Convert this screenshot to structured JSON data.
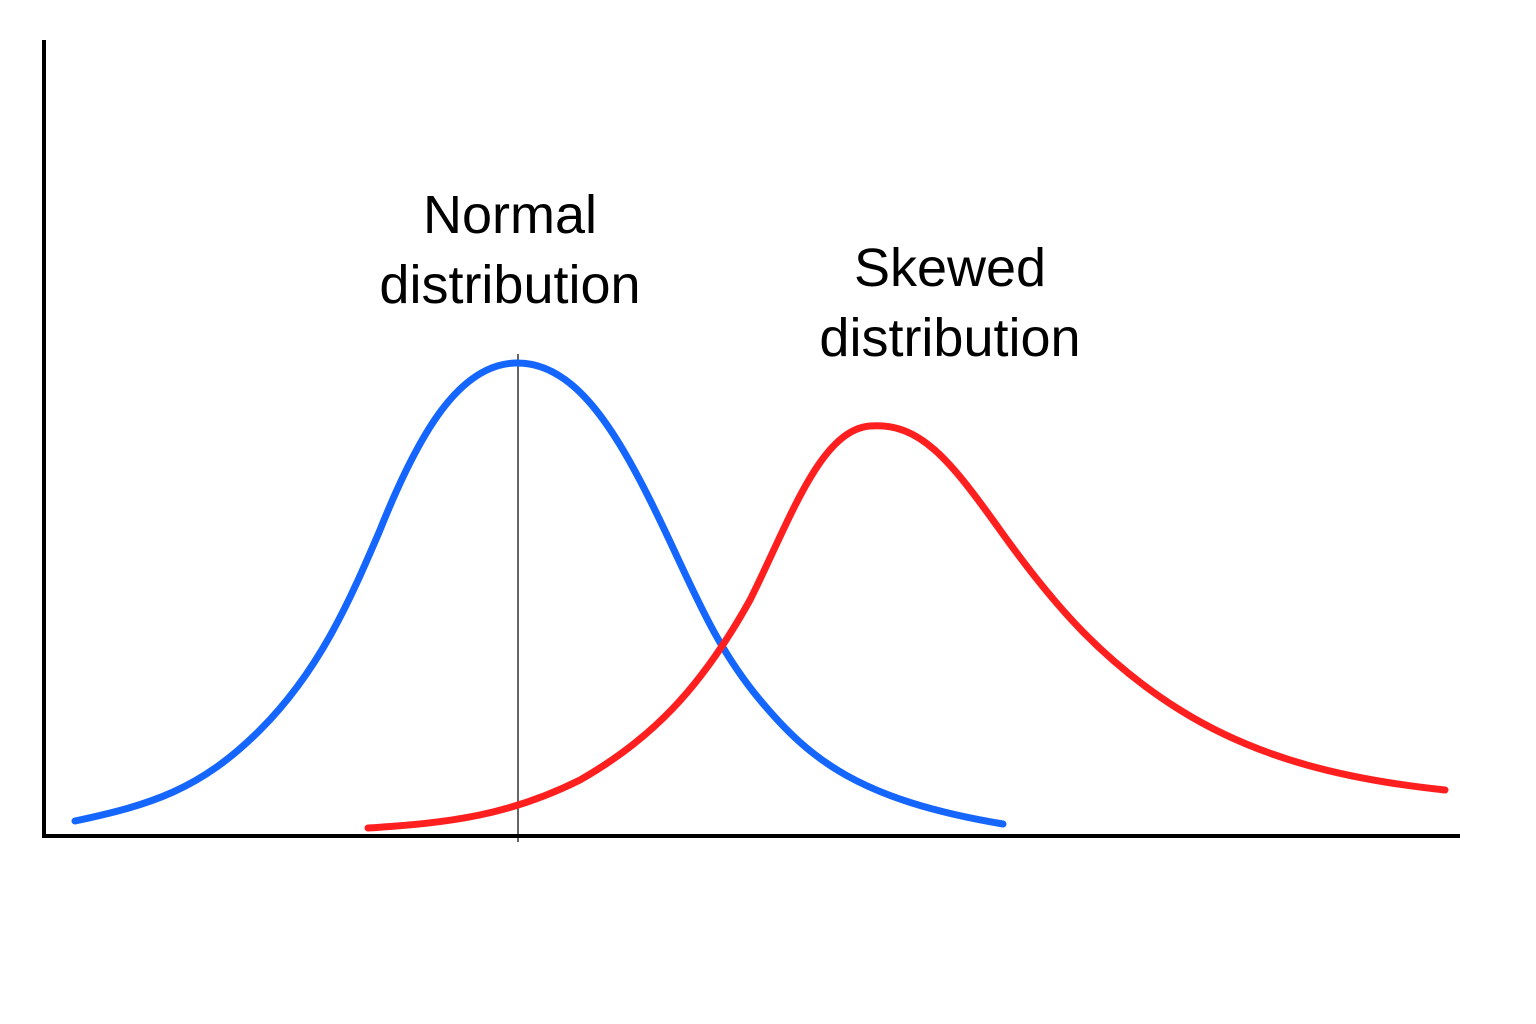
{
  "labels": {
    "normal_line1": "Normal",
    "normal_line2": "distribution",
    "skewed_line1": "Skewed",
    "skewed_line2": "distribution"
  },
  "colors": {
    "normal_curve": "#1565FF",
    "skewed_curve": "#FF1F1F",
    "axes": "#000000",
    "mean_line": "#000000"
  }
}
